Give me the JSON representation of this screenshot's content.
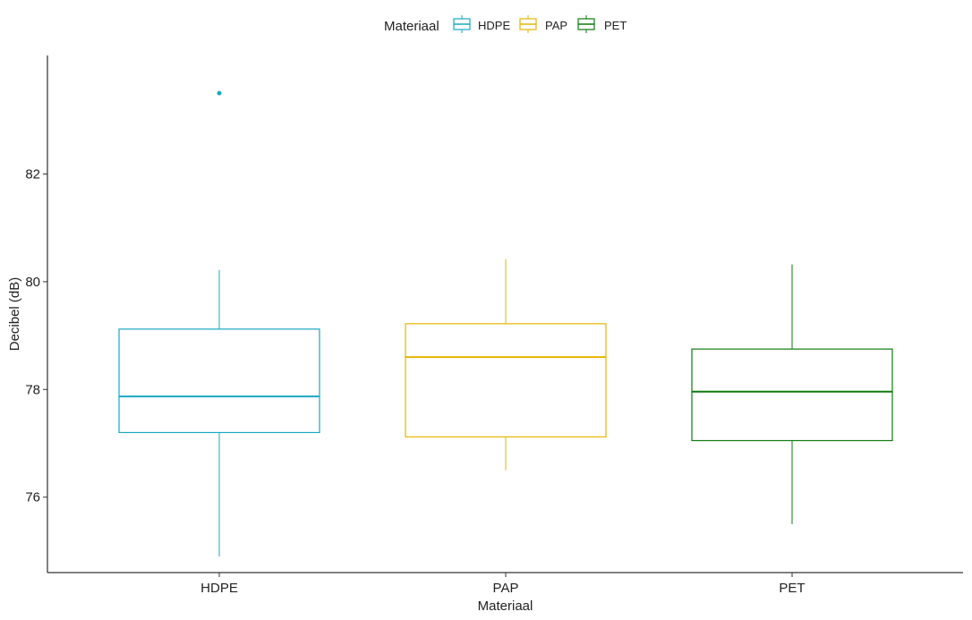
{
  "chart_data": {
    "type": "box",
    "title": "",
    "xlabel": "Materiaal",
    "ylabel": "Decibel (dB)",
    "ylim": [
      74.6,
      84.2
    ],
    "yticks": [
      76,
      78,
      80,
      82
    ],
    "grid": false,
    "legend": {
      "title": "Materiaal",
      "position": "top"
    },
    "categories": [
      "HDPE",
      "PAP",
      "PET"
    ],
    "series": [
      {
        "name": "HDPE",
        "color": "#17a9c1",
        "whisker_low": 74.9,
        "q1": 77.2,
        "median": 77.87,
        "q3": 79.12,
        "whisker_high": 80.22,
        "outliers": [
          83.5
        ]
      },
      {
        "name": "PAP",
        "color": "#e6b400",
        "whisker_low": 76.5,
        "q1": 77.12,
        "median": 78.6,
        "q3": 79.22,
        "whisker_high": 80.42,
        "outliers": []
      },
      {
        "name": "PET",
        "color": "#0f7a0f",
        "whisker_low": 75.5,
        "q1": 77.05,
        "median": 77.96,
        "q3": 78.75,
        "whisker_high": 80.32,
        "outliers": []
      }
    ]
  }
}
